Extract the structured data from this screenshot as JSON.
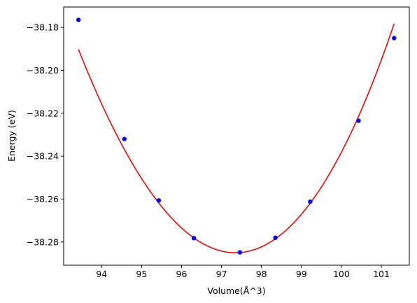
{
  "chart_data": {
    "type": "scatter",
    "xlabel": "Volume(Å^3)",
    "ylabel": "Energy (eV)",
    "xlim": [
      93.05,
      101.7
    ],
    "ylim": [
      -38.2908,
      -38.1705
    ],
    "x_ticks": [
      94,
      95,
      96,
      97,
      98,
      99,
      100,
      101
    ],
    "y_ticks": [
      -38.18,
      -38.2,
      -38.22,
      -38.24,
      -38.26,
      -38.28
    ],
    "x_tick_labels": [
      "94",
      "95",
      "96",
      "97",
      "98",
      "99",
      "100",
      "101"
    ],
    "y_tick_labels": [
      "−38.18",
      "−38.20",
      "−38.22",
      "−38.24",
      "−38.26",
      "−38.28"
    ],
    "grid": false,
    "series": [
      {
        "kind": "points",
        "color": "#0000ff",
        "x": [
          93.42,
          94.57,
          95.43,
          96.31,
          97.46,
          98.35,
          99.22,
          100.43,
          101.32
        ],
        "y": [
          -38.1765,
          -38.232,
          -38.2606,
          -38.2782,
          -38.2848,
          -38.278,
          -38.2612,
          -38.2235,
          -38.185
        ]
      },
      {
        "kind": "fit-line",
        "color": "#ff0000",
        "vertex_x": 97.35,
        "vertex_y": -38.285,
        "curvature": 0.00645,
        "cubic": 8e-05,
        "x_range": [
          93.42,
          101.32
        ]
      }
    ]
  }
}
